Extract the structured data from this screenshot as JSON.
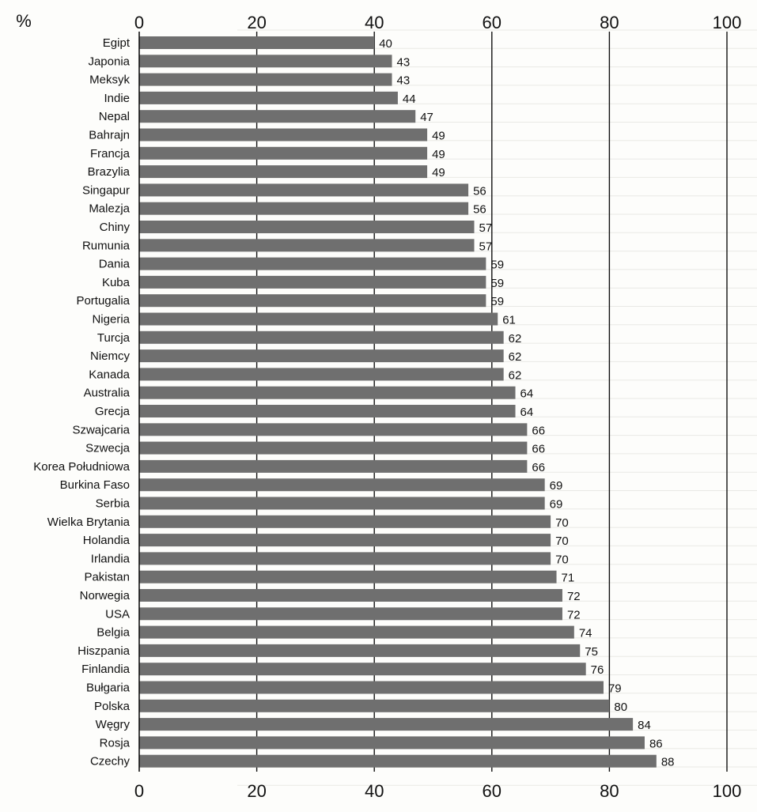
{
  "chart_data": {
    "type": "bar",
    "orientation": "horizontal",
    "unit_label": "%",
    "xlim": [
      0,
      100
    ],
    "ticks": [
      0,
      20,
      40,
      60,
      80,
      100
    ],
    "grid": true,
    "colors": {
      "bar": "#6f6f6f",
      "grid": "#111111",
      "text": "#111111"
    },
    "categories": [
      "Egipt",
      "Japonia",
      "Meksyk",
      "Indie",
      "Nepal",
      "Bahrajn",
      "Francja",
      "Brazylia",
      "Singapur",
      "Malezja",
      "Chiny",
      "Rumunia",
      "Dania",
      "Kuba",
      "Portugalia",
      "Nigeria",
      "Turcja",
      "Niemcy",
      "Kanada",
      "Australia",
      "Grecja",
      "Szwajcaria",
      "Szwecja",
      "Korea Południowa",
      "Burkina Faso",
      "Serbia",
      "Wielka Brytania",
      "Holandia",
      "Irlandia",
      "Pakistan",
      "Norwegia",
      "USA",
      "Belgia",
      "Hiszpania",
      "Finlandia",
      "Bułgaria",
      "Polska",
      "Węgry",
      "Rosja",
      "Czechy"
    ],
    "values": [
      40,
      43,
      43,
      44,
      47,
      49,
      49,
      49,
      56,
      56,
      57,
      57,
      59,
      59,
      59,
      61,
      62,
      62,
      62,
      64,
      64,
      66,
      66,
      66,
      69,
      69,
      70,
      70,
      70,
      71,
      72,
      72,
      74,
      75,
      76,
      79,
      80,
      84,
      86,
      88
    ]
  }
}
